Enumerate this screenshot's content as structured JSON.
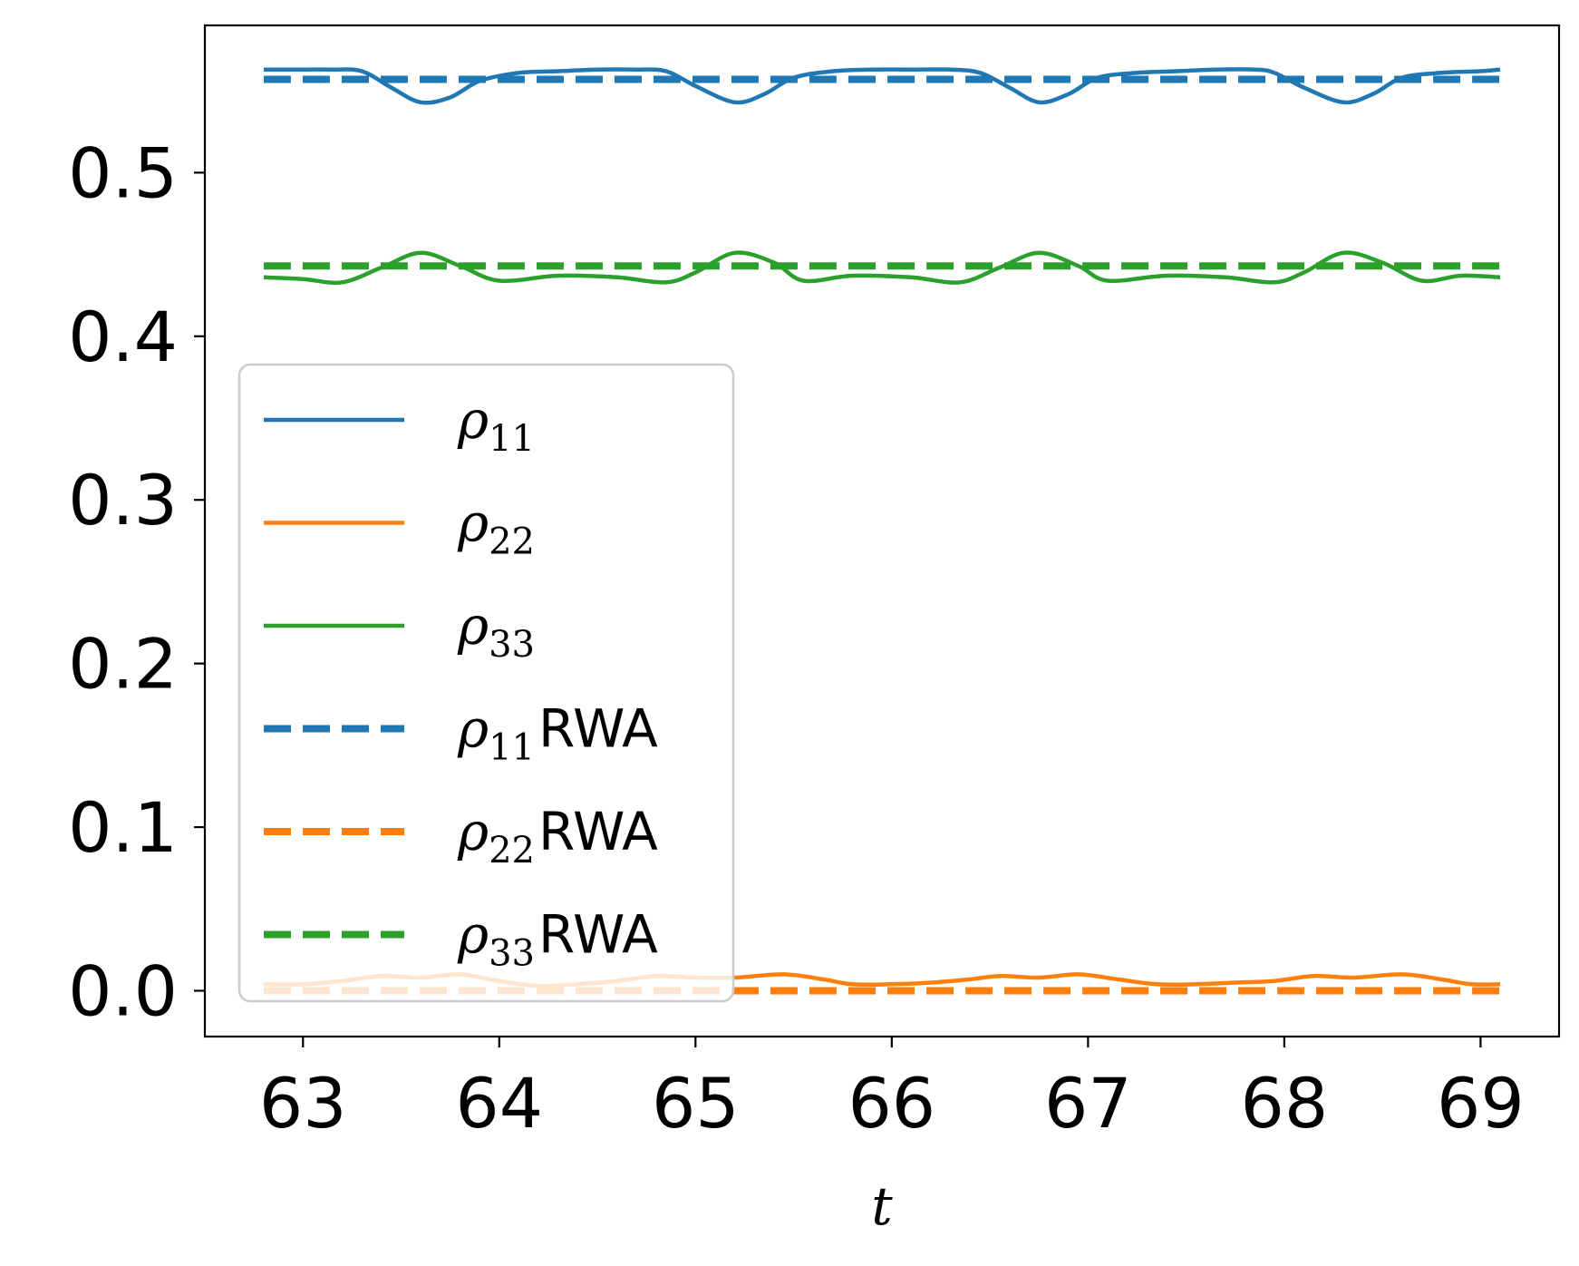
{
  "chart_data": {
    "type": "line",
    "title": "",
    "xlabel": "t",
    "ylabel": "",
    "xlim": [
      62.5,
      69.4
    ],
    "ylim": [
      -0.028,
      0.59
    ],
    "xticks": [
      63,
      64,
      65,
      66,
      67,
      68,
      69
    ],
    "xtick_labels": [
      "63",
      "64",
      "65",
      "66",
      "67",
      "68",
      "69"
    ],
    "yticks": [
      0.0,
      0.1,
      0.2,
      0.3,
      0.4,
      0.5
    ],
    "ytick_labels": [
      "0.0",
      "0.1",
      "0.2",
      "0.3",
      "0.4",
      "0.5"
    ],
    "grid": false,
    "legend_position": "center-left",
    "x_range": [
      62.8,
      69.1
    ],
    "series": [
      {
        "name": "ρ11",
        "symbol": "ρ",
        "subscript": "11",
        "suffix": "",
        "color": "#1f77b4",
        "dash": "solid",
        "x": [
          62.8,
          63.0,
          63.15,
          63.3,
          63.45,
          63.6,
          63.75,
          63.9,
          64.1,
          64.3,
          64.5,
          64.7,
          64.85,
          65.0,
          65.2,
          65.35,
          65.5,
          65.7,
          65.9,
          66.1,
          66.3,
          66.45,
          66.6,
          66.75,
          66.9,
          67.05,
          67.25,
          67.45,
          67.65,
          67.85,
          67.95,
          68.1,
          68.3,
          68.45,
          68.6,
          68.8,
          69.0,
          69.1
        ],
        "y": [
          0.563,
          0.563,
          0.563,
          0.562,
          0.552,
          0.543,
          0.546,
          0.556,
          0.561,
          0.562,
          0.563,
          0.563,
          0.562,
          0.553,
          0.543,
          0.548,
          0.558,
          0.562,
          0.563,
          0.563,
          0.563,
          0.561,
          0.552,
          0.543,
          0.548,
          0.558,
          0.561,
          0.562,
          0.563,
          0.563,
          0.561,
          0.552,
          0.543,
          0.548,
          0.558,
          0.561,
          0.562,
          0.563
        ]
      },
      {
        "name": "ρ22",
        "symbol": "ρ",
        "subscript": "22",
        "suffix": "",
        "color": "#ff7f0e",
        "dash": "solid",
        "x": [
          62.8,
          63.0,
          63.2,
          63.4,
          63.6,
          63.8,
          64.0,
          64.2,
          64.4,
          64.6,
          64.8,
          65.0,
          65.2,
          65.45,
          65.65,
          65.8,
          66.0,
          66.2,
          66.4,
          66.55,
          66.75,
          66.95,
          67.15,
          67.35,
          67.55,
          67.75,
          67.95,
          68.15,
          68.35,
          68.6,
          68.8,
          68.95,
          69.1
        ],
        "y": [
          0.004,
          0.004,
          0.006,
          0.009,
          0.008,
          0.01,
          0.006,
          0.003,
          0.004,
          0.006,
          0.009,
          0.008,
          0.008,
          0.01,
          0.007,
          0.004,
          0.004,
          0.005,
          0.007,
          0.009,
          0.008,
          0.01,
          0.007,
          0.004,
          0.004,
          0.005,
          0.006,
          0.009,
          0.008,
          0.01,
          0.007,
          0.004,
          0.004
        ]
      },
      {
        "name": "ρ33",
        "symbol": "ρ",
        "subscript": "33",
        "suffix": "",
        "color": "#2ca02c",
        "dash": "solid",
        "x": [
          62.8,
          63.0,
          63.2,
          63.4,
          63.6,
          63.8,
          64.0,
          64.3,
          64.6,
          64.85,
          65.0,
          65.2,
          65.4,
          65.55,
          65.8,
          66.1,
          66.35,
          66.55,
          66.75,
          66.95,
          67.1,
          67.4,
          67.7,
          67.95,
          68.1,
          68.3,
          68.5,
          68.7,
          68.9,
          69.1
        ],
        "y": [
          0.436,
          0.435,
          0.433,
          0.442,
          0.451,
          0.443,
          0.434,
          0.437,
          0.436,
          0.433,
          0.439,
          0.451,
          0.445,
          0.434,
          0.437,
          0.436,
          0.433,
          0.442,
          0.451,
          0.443,
          0.434,
          0.437,
          0.436,
          0.433,
          0.439,
          0.451,
          0.445,
          0.434,
          0.437,
          0.436
        ]
      },
      {
        "name": "ρ11RWA",
        "symbol": "ρ",
        "subscript": "11",
        "suffix": "RWA",
        "color": "#1f77b4",
        "dash": "dashed",
        "x": [
          62.8,
          69.1
        ],
        "y": [
          0.557,
          0.557
        ]
      },
      {
        "name": "ρ22RWA",
        "symbol": "ρ",
        "subscript": "22",
        "suffix": "RWA",
        "color": "#ff7f0e",
        "dash": "dashed",
        "x": [
          62.8,
          69.1
        ],
        "y": [
          0.0,
          0.0
        ]
      },
      {
        "name": "ρ33RWA",
        "symbol": "ρ",
        "subscript": "33",
        "suffix": "RWA",
        "color": "#2ca02c",
        "dash": "dashed",
        "x": [
          62.8,
          69.1
        ],
        "y": [
          0.443,
          0.443
        ]
      }
    ]
  }
}
